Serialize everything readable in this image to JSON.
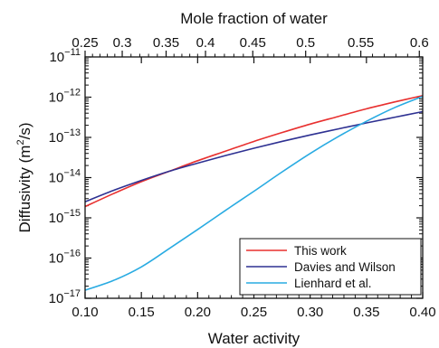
{
  "chart_data": {
    "type": "line",
    "xlabel": "Water activity",
    "x2label": "Mole fraction of water",
    "ylabel_prefix": "Diffusivity (m",
    "ylabel_sup": "2",
    "ylabel_suffix": "/s)",
    "xlim": [
      0.1,
      0.4
    ],
    "ylim_log10": [
      -17,
      -11
    ],
    "y_scale": "log",
    "grid": false,
    "legend_position": "bottom-right",
    "x_ticks": [
      {
        "value": 0.1,
        "label": "0.10"
      },
      {
        "value": 0.15,
        "label": "0.15"
      },
      {
        "value": 0.2,
        "label": "0.20"
      },
      {
        "value": 0.25,
        "label": "0.25"
      },
      {
        "value": 0.3,
        "label": "0.30"
      },
      {
        "value": 0.35,
        "label": "0.35"
      },
      {
        "value": 0.4,
        "label": "0.40"
      }
    ],
    "y_ticks": [
      {
        "exp": -17,
        "base": "10",
        "sup": "−17"
      },
      {
        "exp": -16,
        "base": "10",
        "sup": "−16"
      },
      {
        "exp": -15,
        "base": "10",
        "sup": "−15"
      },
      {
        "exp": -14,
        "base": "10",
        "sup": "−14"
      },
      {
        "exp": -13,
        "base": "10",
        "sup": "−13"
      },
      {
        "exp": -12,
        "base": "10",
        "sup": "−12"
      },
      {
        "exp": -11,
        "base": "10",
        "sup": "−11"
      }
    ],
    "top_axis_ticks": [
      {
        "water_activity": 0.1,
        "label": "0.25"
      },
      {
        "water_activity": 0.133,
        "label": "0.3"
      },
      {
        "water_activity": 0.172,
        "label": "0.35"
      },
      {
        "water_activity": 0.207,
        "label": "0.4"
      },
      {
        "water_activity": 0.249,
        "label": "0.45"
      },
      {
        "water_activity": 0.296,
        "label": "0.5"
      },
      {
        "water_activity": 0.345,
        "label": "0.55"
      },
      {
        "water_activity": 0.397,
        "label": "0.6"
      }
    ],
    "series": [
      {
        "name": "This work",
        "color": "#e8302f",
        "x": [
          0.1,
          0.125,
          0.15,
          0.175,
          0.2,
          0.225,
          0.25,
          0.275,
          0.3,
          0.325,
          0.35,
          0.375,
          0.4
        ],
        "log10_y": [
          -14.72,
          -14.4,
          -14.1,
          -13.84,
          -13.58,
          -13.34,
          -13.1,
          -12.88,
          -12.67,
          -12.48,
          -12.29,
          -12.12,
          -11.96
        ]
      },
      {
        "name": "Davies and Wilson",
        "color": "#2e3192",
        "x": [
          0.1,
          0.125,
          0.15,
          0.175,
          0.2,
          0.225,
          0.25,
          0.275,
          0.3,
          0.325,
          0.35,
          0.375,
          0.4
        ],
        "log10_y": [
          -14.6,
          -14.32,
          -14.07,
          -13.84,
          -13.64,
          -13.45,
          -13.27,
          -13.1,
          -12.94,
          -12.79,
          -12.64,
          -12.5,
          -12.36
        ]
      },
      {
        "name": "Lienhard et al.",
        "color": "#29abe2",
        "x": [
          0.1,
          0.125,
          0.15,
          0.175,
          0.2,
          0.225,
          0.25,
          0.275,
          0.3,
          0.325,
          0.35,
          0.375,
          0.4
        ],
        "log10_y": [
          -16.8,
          -16.56,
          -16.22,
          -15.76,
          -15.29,
          -14.81,
          -14.34,
          -13.86,
          -13.4,
          -12.98,
          -12.6,
          -12.26,
          -11.98
        ]
      }
    ]
  }
}
